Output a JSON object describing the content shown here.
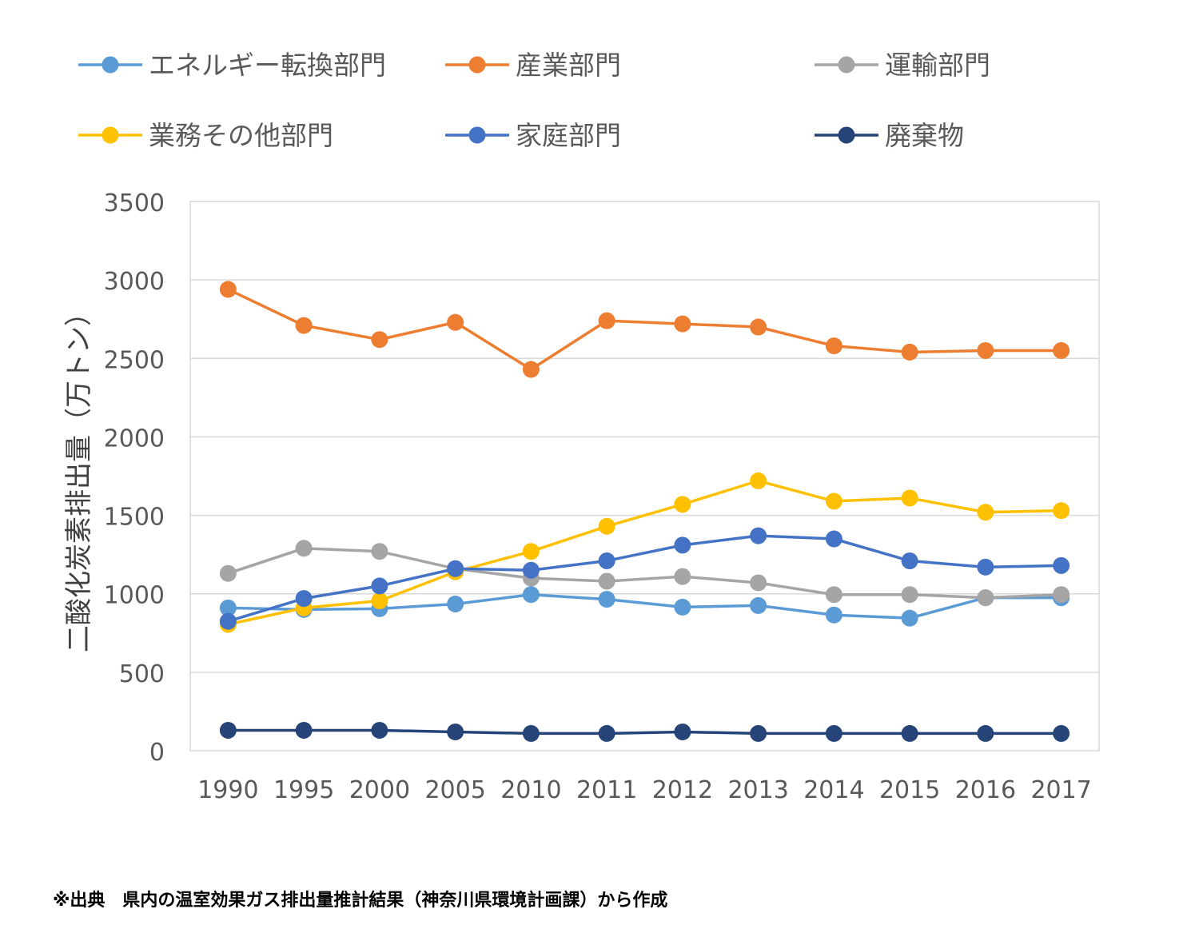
{
  "chart_data": {
    "type": "line",
    "title": "",
    "xlabel": "",
    "ylabel": "二酸化炭素排出量（万トン）",
    "categories": [
      "1990",
      "1995",
      "2000",
      "2005",
      "2010",
      "2011",
      "2012",
      "2013",
      "2014",
      "2015",
      "2016",
      "2017"
    ],
    "ylim": [
      0,
      3500
    ],
    "yticks": [
      0,
      500,
      1000,
      1500,
      2000,
      2500,
      3000,
      3500
    ],
    "grid": true,
    "legend_position": "top",
    "series": [
      {
        "name": "エネルギー転換部門",
        "color": "#5b9bd5",
        "values": [
          910,
          900,
          905,
          935,
          995,
          965,
          915,
          925,
          865,
          845,
          975,
          975
        ]
      },
      {
        "name": "産業部門",
        "color": "#ed7d31",
        "values": [
          2940,
          2710,
          2620,
          2730,
          2430,
          2740,
          2720,
          2700,
          2580,
          2540,
          2550,
          2550
        ]
      },
      {
        "name": "運輸部門",
        "color": "#a5a5a5",
        "values": [
          1130,
          1290,
          1270,
          1160,
          1100,
          1080,
          1110,
          1070,
          995,
          995,
          975,
          995
        ]
      },
      {
        "name": "業務その他部門",
        "color": "#ffc000",
        "values": [
          805,
          910,
          955,
          1140,
          1270,
          1430,
          1570,
          1720,
          1590,
          1610,
          1520,
          1530
        ]
      },
      {
        "name": "家庭部門",
        "color": "#4472c4",
        "values": [
          825,
          970,
          1050,
          1160,
          1150,
          1210,
          1310,
          1370,
          1350,
          1210,
          1170,
          1180
        ]
      },
      {
        "name": "廃棄物",
        "color": "#264478",
        "values": [
          130,
          130,
          130,
          120,
          110,
          110,
          120,
          110,
          110,
          110,
          110,
          110
        ]
      }
    ]
  },
  "source_note": "※出典　県内の温室効果ガス排出量推計結果（神奈川県環境計画課）から作成"
}
